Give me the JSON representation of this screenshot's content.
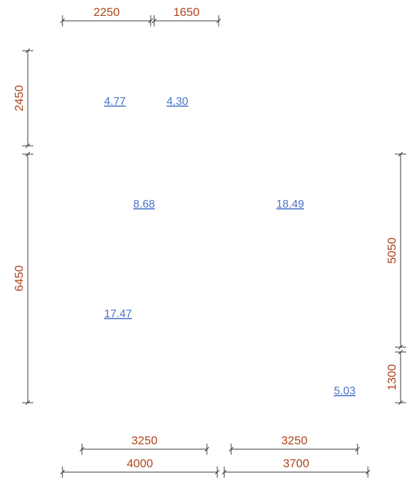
{
  "dimensions": {
    "top": [
      "2250",
      "1650"
    ],
    "left": [
      "2450",
      "6450"
    ],
    "right": [
      "5050",
      "1300"
    ],
    "bottom_inner": [
      "3250",
      "3250"
    ],
    "bottom_outer": [
      "4000",
      "3700"
    ]
  },
  "rooms": [
    {
      "area": "4.77"
    },
    {
      "area": "4.30"
    },
    {
      "area": "8.68"
    },
    {
      "area": "18.49"
    },
    {
      "area": "17.47"
    },
    {
      "area": "5.03"
    }
  ]
}
